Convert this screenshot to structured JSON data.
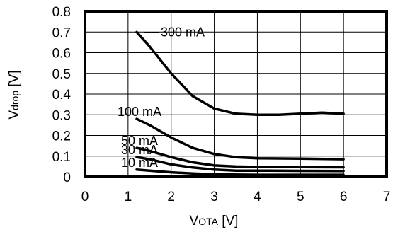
{
  "chart_data": {
    "type": "line",
    "xlabel": {
      "main": "V",
      "sub": "OTA",
      "unit": " [V]"
    },
    "ylabel": {
      "main": "V",
      "sub": "drop",
      "unit": " [V]"
    },
    "xlim": [
      0,
      7
    ],
    "ylim": [
      0,
      0.8
    ],
    "xticks": [
      "0",
      "1",
      "2",
      "3",
      "4",
      "5",
      "6",
      "7"
    ],
    "yticks": [
      "0",
      "0.1",
      "0.2",
      "0.3",
      "0.4",
      "0.5",
      "0.6",
      "0.7",
      "0.8"
    ],
    "grid": true,
    "series": [
      {
        "name": "300 mA",
        "x": [
          1.2,
          1.5,
          2.0,
          2.5,
          3.0,
          3.5,
          4.0,
          4.5,
          5.0,
          5.5,
          6.0
        ],
        "y": [
          0.7,
          0.63,
          0.5,
          0.39,
          0.33,
          0.305,
          0.3,
          0.3,
          0.305,
          0.31,
          0.305
        ]
      },
      {
        "name": "100 mA",
        "x": [
          1.2,
          1.5,
          2.0,
          2.5,
          3.0,
          3.5,
          4.0,
          5.0,
          6.0
        ],
        "y": [
          0.28,
          0.25,
          0.19,
          0.14,
          0.11,
          0.095,
          0.09,
          0.088,
          0.085
        ]
      },
      {
        "name": "50 mA",
        "x": [
          1.2,
          1.5,
          2.0,
          2.5,
          3.0,
          3.5,
          4.0,
          5.0,
          6.0
        ],
        "y": [
          0.14,
          0.125,
          0.095,
          0.07,
          0.055,
          0.05,
          0.048,
          0.047,
          0.046
        ]
      },
      {
        "name": "30 mA",
        "x": [
          1.2,
          1.5,
          2.0,
          2.5,
          3.0,
          3.5,
          4.0,
          5.0,
          6.0
        ],
        "y": [
          0.095,
          0.085,
          0.06,
          0.045,
          0.035,
          0.03,
          0.03,
          0.029,
          0.028
        ]
      },
      {
        "name": "10 mA",
        "x": [
          1.2,
          1.5,
          2.0,
          2.5,
          3.0,
          4.0,
          5.0,
          6.0
        ],
        "y": [
          0.035,
          0.03,
          0.022,
          0.016,
          0.012,
          0.01,
          0.01,
          0.01
        ]
      }
    ],
    "colors": {
      "line": "#000000",
      "grid": "#000000",
      "background": "#ffffff"
    }
  }
}
